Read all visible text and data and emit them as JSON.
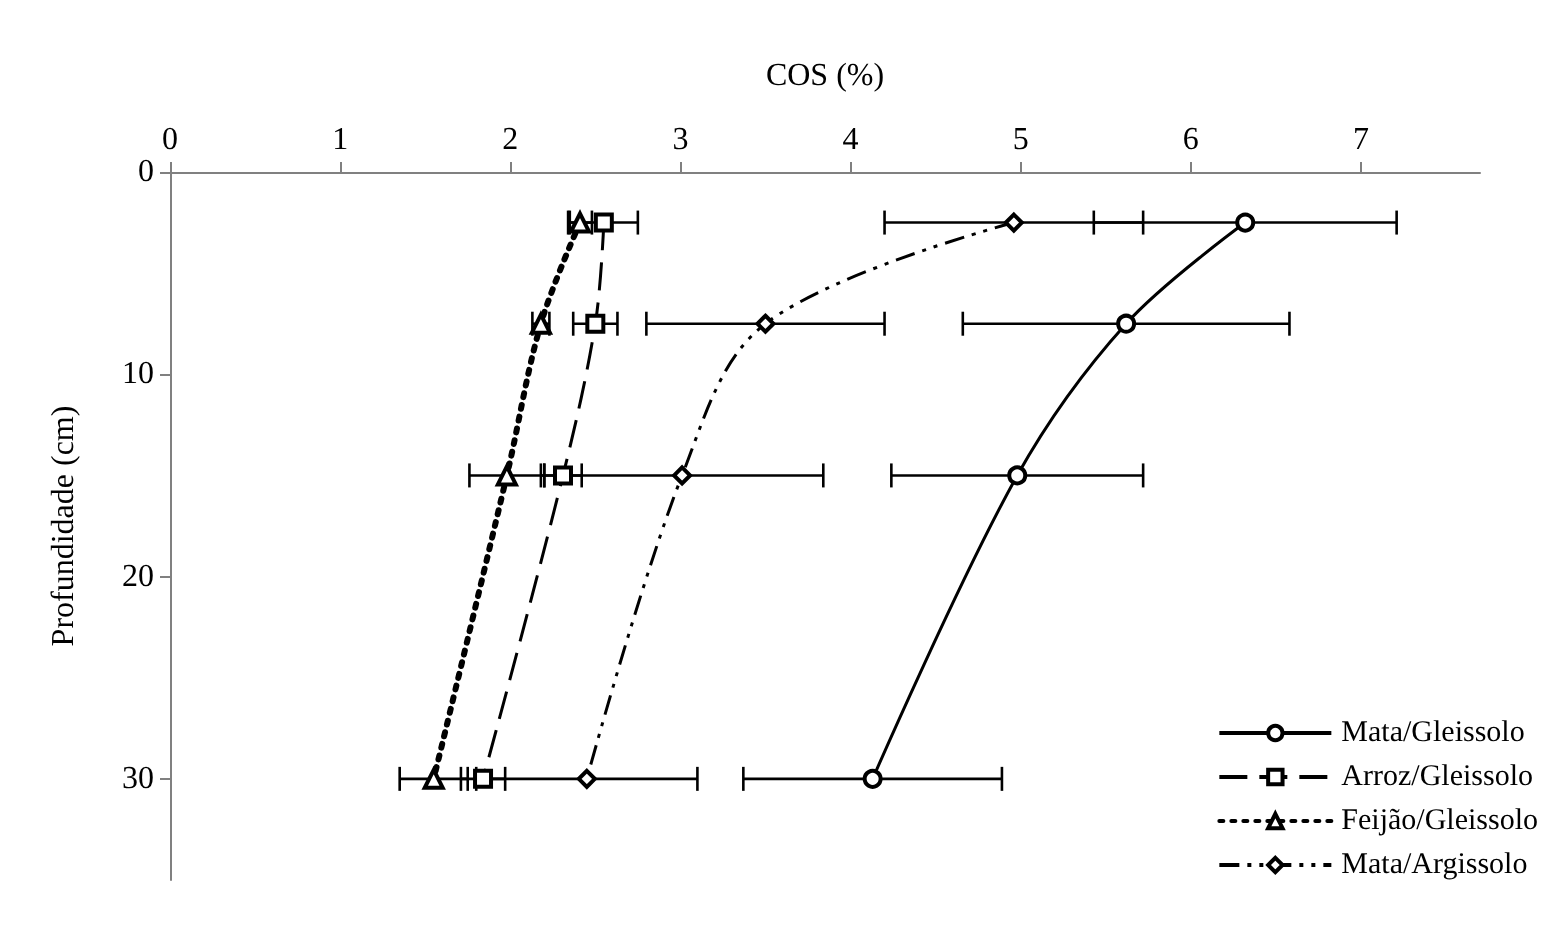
{
  "chart_data": {
    "type": "line",
    "xlabel": "COS (%)",
    "ylabel": "Profundidade (cm)",
    "xlim": [
      0,
      7.7
    ],
    "xticks": [
      0,
      1,
      2,
      3,
      4,
      5,
      6,
      7
    ],
    "ylim": [
      35,
      0
    ],
    "yticks": [
      0,
      10,
      20,
      30
    ],
    "grid": false,
    "legend": "bottom right",
    "series": [
      {
        "name": "Mata/Gleissolo",
        "color": "#000000",
        "marker": "circle",
        "line_style": "solid",
        "x": [
          6.32,
          5.62,
          4.98,
          4.13
        ],
        "values": [
          2.5,
          7.5,
          15,
          30
        ],
        "xerrors": [
          0.89,
          0.96,
          0.74,
          0.76
        ]
      },
      {
        "name": "Arroz/Gleissolo",
        "color": "#000000",
        "marker": "square",
        "line_style": "dashed",
        "x": [
          2.55,
          2.5,
          2.31,
          1.84
        ],
        "values": [
          2.5,
          7.5,
          15,
          30
        ],
        "xerrors": [
          0.2,
          0.13,
          0.11,
          0.13
        ]
      },
      {
        "name": "Feijão/Gleissolo",
        "color": "#000000",
        "marker": "triangle",
        "line_style": "dotted",
        "x": [
          2.41,
          2.18,
          1.98,
          1.55
        ],
        "values": [
          2.5,
          7.5,
          15,
          30
        ],
        "xerrors": [
          0.07,
          0.05,
          0.22,
          0.2
        ]
      },
      {
        "name": "Mata/Argissolo",
        "color": "#000000",
        "marker": "diamond",
        "line_style": "dashdot",
        "x": [
          4.96,
          3.5,
          3.01,
          2.45
        ],
        "values": [
          2.5,
          7.5,
          15,
          30
        ],
        "xerrors": [
          0.76,
          0.7,
          0.83,
          0.65
        ]
      }
    ]
  }
}
